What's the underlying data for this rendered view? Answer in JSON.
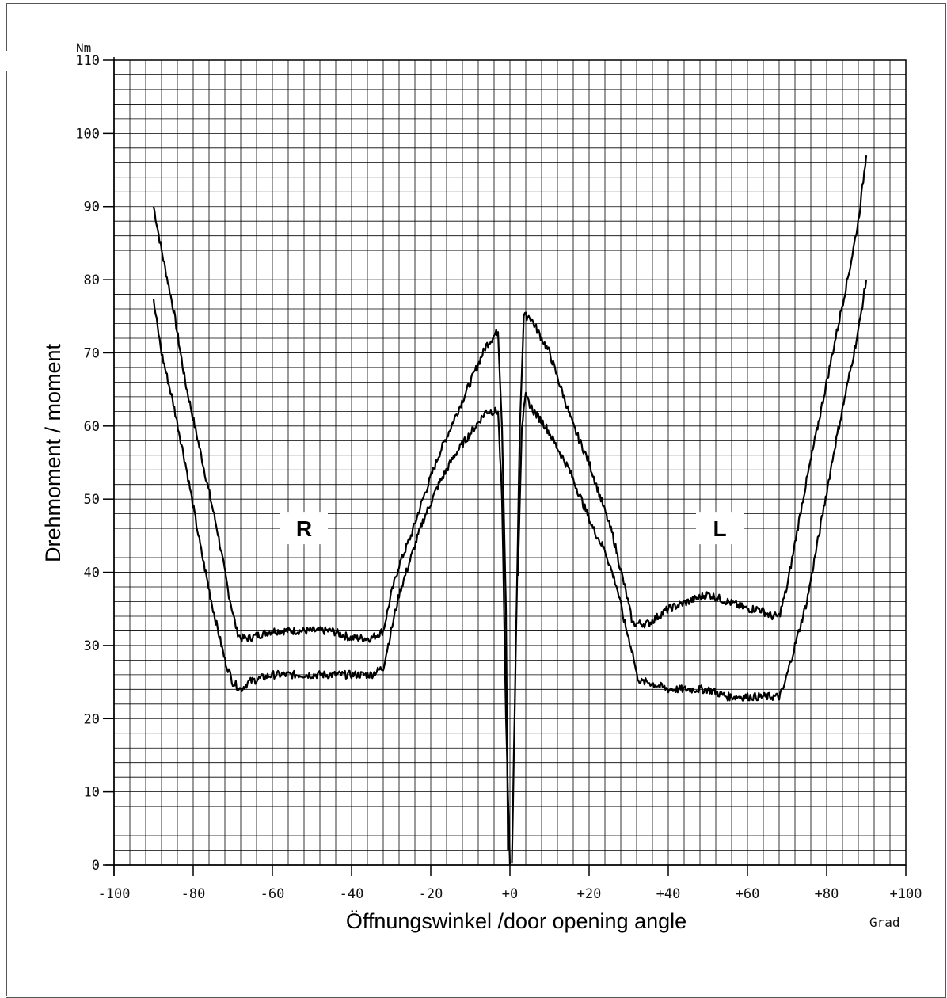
{
  "chart_data": {
    "type": "line",
    "xlabel": "Öffnungswinkel /door opening angle",
    "ylabel": "Drehmoment / moment",
    "x_unit": "Grad",
    "y_unit": "Nm",
    "xlim": [
      -100,
      100
    ],
    "ylim": [
      0,
      110
    ],
    "grid": true,
    "x_ticks": [
      -100,
      -80,
      -60,
      -40,
      -20,
      0,
      20,
      40,
      60,
      80,
      100
    ],
    "x_tick_labels": [
      "-100",
      "-80",
      "-60",
      "-40",
      "-20",
      "+0",
      "+20",
      "+40",
      "+60",
      "+80",
      "+100"
    ],
    "y_ticks": [
      0,
      10,
      20,
      30,
      40,
      50,
      60,
      70,
      80,
      90,
      100,
      110
    ],
    "y_tick_labels": [
      "0",
      "10",
      "20",
      "30",
      "40",
      "50",
      "60",
      "70",
      "80",
      "90",
      "100",
      "110"
    ],
    "annotations": [
      {
        "text": "R",
        "x": -52,
        "y": 46
      },
      {
        "text": "L",
        "x": 53,
        "y": 46
      }
    ],
    "series": [
      {
        "x": [
          -90,
          -88,
          -85,
          -82,
          -78,
          -74,
          -71,
          -69,
          -68,
          -66,
          -60,
          -55,
          -50,
          -45,
          -40,
          -35,
          -32,
          -30,
          -28,
          -25,
          -22,
          -18,
          -14,
          -10,
          -6,
          -3,
          -2,
          -1,
          -0.5
        ],
        "y": [
          90,
          84,
          76,
          66,
          56,
          46,
          37,
          32,
          31,
          31,
          32,
          32,
          32,
          32,
          31,
          31,
          32,
          37,
          41,
          45,
          50,
          56,
          61,
          66,
          71,
          73,
          60,
          35,
          2
        ]
      },
      {
        "x": [
          -90,
          -88,
          -85,
          -82,
          -78,
          -75,
          -72,
          -70,
          -68,
          -66,
          -60,
          -55,
          -50,
          -45,
          -40,
          -35,
          -32,
          -30,
          -28,
          -25,
          -22,
          -18,
          -14,
          -10,
          -6,
          -3,
          -2,
          -1,
          0
        ],
        "y": [
          77,
          70,
          63,
          55,
          43,
          35,
          28,
          25,
          24,
          25,
          26,
          26,
          26,
          26,
          26,
          26,
          27,
          32,
          37,
          42,
          47,
          52,
          56,
          59,
          62,
          62,
          50,
          20,
          0
        ]
      },
      {
        "x": [
          0.5,
          1.5,
          2.5,
          3.5,
          5,
          8,
          10,
          13,
          16,
          20,
          23,
          26,
          29,
          31,
          32,
          33,
          35,
          40,
          45,
          50,
          55,
          60,
          63,
          66,
          68,
          70,
          72,
          74,
          77,
          80,
          83,
          86,
          88,
          90
        ],
        "y": [
          0,
          30,
          60,
          75,
          75,
          72,
          70,
          65,
          60,
          55,
          50,
          45,
          38,
          33,
          33,
          33,
          33,
          35,
          36,
          37,
          36,
          35,
          35,
          34,
          34,
          38,
          44,
          50,
          58,
          66,
          74,
          82,
          88,
          97
        ],
        "xb": null
      },
      {
        "x": [
          2,
          3,
          4,
          6,
          9,
          12,
          15,
          18,
          21,
          24,
          27,
          29,
          31,
          32,
          33,
          35,
          40,
          45,
          50,
          55,
          60,
          65,
          68,
          69,
          70,
          72,
          75,
          78,
          80,
          82,
          85,
          88,
          90
        ],
        "y": [
          40,
          60,
          64,
          62,
          60,
          57,
          54,
          50,
          46,
          43,
          38,
          33,
          29,
          26,
          25,
          25,
          24,
          24,
          24,
          23,
          23,
          23,
          23,
          24,
          26,
          30,
          36,
          45,
          51,
          57,
          65,
          73,
          80
        ]
      }
    ]
  }
}
